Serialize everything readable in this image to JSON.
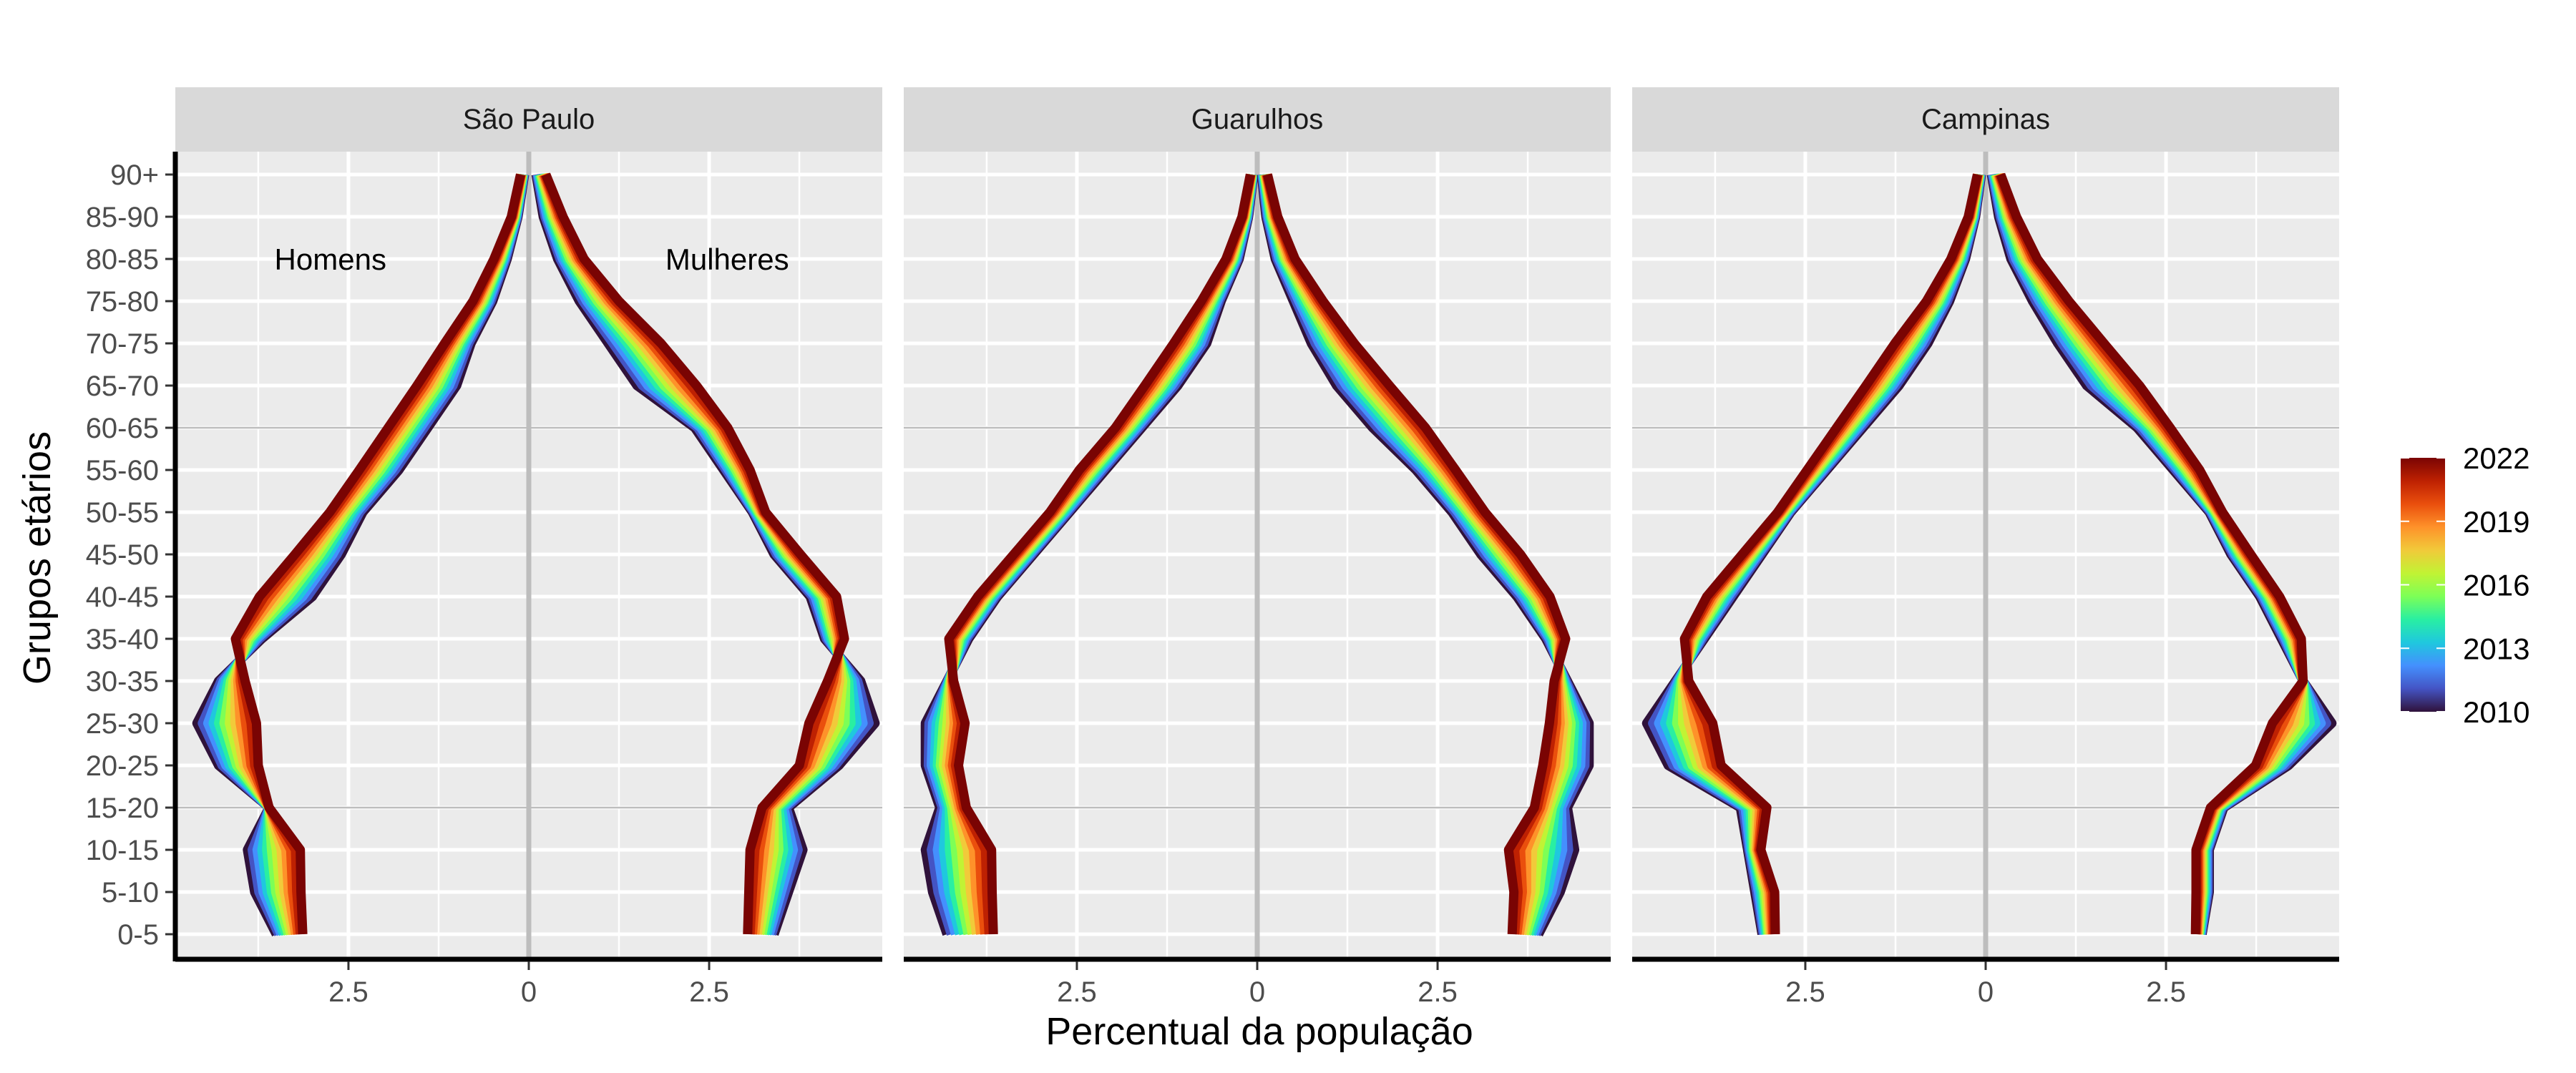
{
  "chart_data": {
    "type": "line",
    "xlabel": "Percentual da população",
    "ylabel": "Grupos etários",
    "age_groups": [
      "0-5",
      "5-10",
      "10-15",
      "15-20",
      "20-25",
      "25-30",
      "30-35",
      "35-40",
      "40-45",
      "45-50",
      "50-55",
      "55-60",
      "60-65",
      "65-70",
      "70-75",
      "75-80",
      "80-85",
      "85-90",
      "90+"
    ],
    "x_ticks": [
      -2.5,
      0,
      2.5
    ],
    "x_tick_labels": [
      "2.5",
      "0",
      "2.5"
    ],
    "xlim": [
      -4.9,
      4.9
    ],
    "hlines_at": [
      "15-20",
      "60-65"
    ],
    "annotations": [
      {
        "text": "Homens",
        "panel": 0,
        "x": -2.75,
        "age": "80-85"
      },
      {
        "text": "Mulheres",
        "panel": 0,
        "x": 2.75,
        "age": "80-85"
      }
    ],
    "legend": {
      "placement": "right",
      "min": 2010,
      "max": 2022,
      "labels": [
        "2022",
        "2019",
        "2016",
        "2013",
        "2010"
      ],
      "label_values": [
        2022,
        2019,
        2016,
        2013,
        2010
      ],
      "colors": [
        "#30123b",
        "#4454c4",
        "#4490fe",
        "#1fc8de",
        "#29efa2",
        "#7dff56",
        "#c1f334",
        "#f1ca3a",
        "#fe922a",
        "#ea4f0d",
        "#be2102",
        "#7a0403"
      ]
    },
    "panels": [
      {
        "title": "São Paulo",
        "men_2010": [
          -3.5,
          -3.8,
          -3.9,
          -3.6,
          -4.3,
          -4.6,
          -4.3,
          -3.7,
          -3.0,
          -2.6,
          -2.3,
          -1.8,
          -1.4,
          -1.0,
          -0.8,
          -0.5,
          -0.3,
          -0.15,
          -0.06
        ],
        "men_2022": [
          -3.1,
          -3.1,
          -3.1,
          -3.6,
          -3.7,
          -3.7,
          -3.9,
          -4.1,
          -3.8,
          -3.3,
          -2.8,
          -2.4,
          -2.0,
          -1.6,
          -1.2,
          -0.8,
          -0.5,
          -0.25,
          -0.12
        ],
        "women_2010": [
          3.4,
          3.6,
          3.8,
          3.6,
          4.3,
          4.8,
          4.6,
          4.1,
          3.9,
          3.4,
          3.1,
          2.7,
          2.3,
          1.5,
          1.1,
          0.7,
          0.4,
          0.2,
          0.1
        ],
        "women_2022": [
          3.0,
          3.0,
          3.0,
          3.2,
          3.7,
          3.8,
          4.1,
          4.4,
          4.3,
          3.8,
          3.3,
          3.1,
          2.8,
          2.4,
          1.9,
          1.3,
          0.8,
          0.5,
          0.25
        ]
      },
      {
        "title": "Guarulhos",
        "men_2010": [
          -4.3,
          -4.5,
          -4.6,
          -4.4,
          -4.6,
          -4.6,
          -4.3,
          -4.0,
          -3.6,
          -3.1,
          -2.6,
          -2.1,
          -1.6,
          -1.1,
          -0.7,
          -0.5,
          -0.25,
          -0.12,
          -0.05
        ],
        "men_2022": [
          -3.6,
          -3.6,
          -3.6,
          -4.0,
          -4.1,
          -4.0,
          -4.2,
          -4.3,
          -3.9,
          -3.4,
          -2.9,
          -2.5,
          -2.0,
          -1.6,
          -1.2,
          -0.8,
          -0.45,
          -0.22,
          -0.1
        ],
        "women_2010": [
          3.9,
          4.2,
          4.4,
          4.3,
          4.6,
          4.6,
          4.3,
          4.0,
          3.6,
          3.1,
          2.7,
          2.2,
          1.6,
          1.1,
          0.75,
          0.5,
          0.25,
          0.12,
          0.06
        ],
        "women_2022": [
          3.5,
          3.5,
          3.4,
          3.8,
          3.9,
          4.0,
          4.1,
          4.3,
          4.1,
          3.7,
          3.2,
          2.8,
          2.4,
          1.9,
          1.4,
          0.95,
          0.55,
          0.3,
          0.15
        ]
      },
      {
        "title": "Campinas",
        "men_2010": [
          -3.1,
          -3.2,
          -3.3,
          -3.4,
          -4.4,
          -4.7,
          -4.3,
          -3.9,
          -3.5,
          -3.1,
          -2.7,
          -2.2,
          -1.7,
          -1.2,
          -0.8,
          -0.5,
          -0.28,
          -0.14,
          -0.06
        ],
        "men_2022": [
          -2.9,
          -2.9,
          -3.1,
          -3.0,
          -3.6,
          -3.7,
          -4.1,
          -4.2,
          -3.9,
          -3.4,
          -2.9,
          -2.5,
          -2.1,
          -1.7,
          -1.3,
          -0.85,
          -0.5,
          -0.25,
          -0.12
        ],
        "women_2010": [
          3.0,
          3.1,
          3.1,
          3.3,
          4.2,
          4.8,
          4.4,
          4.1,
          3.8,
          3.4,
          3.1,
          2.6,
          2.1,
          1.4,
          1.0,
          0.65,
          0.35,
          0.18,
          0.08
        ],
        "women_2022": [
          2.9,
          2.9,
          2.9,
          3.1,
          3.7,
          3.9,
          4.4,
          4.4,
          4.1,
          3.7,
          3.3,
          3.0,
          2.6,
          2.2,
          1.7,
          1.2,
          0.75,
          0.45,
          0.22
        ]
      }
    ]
  }
}
